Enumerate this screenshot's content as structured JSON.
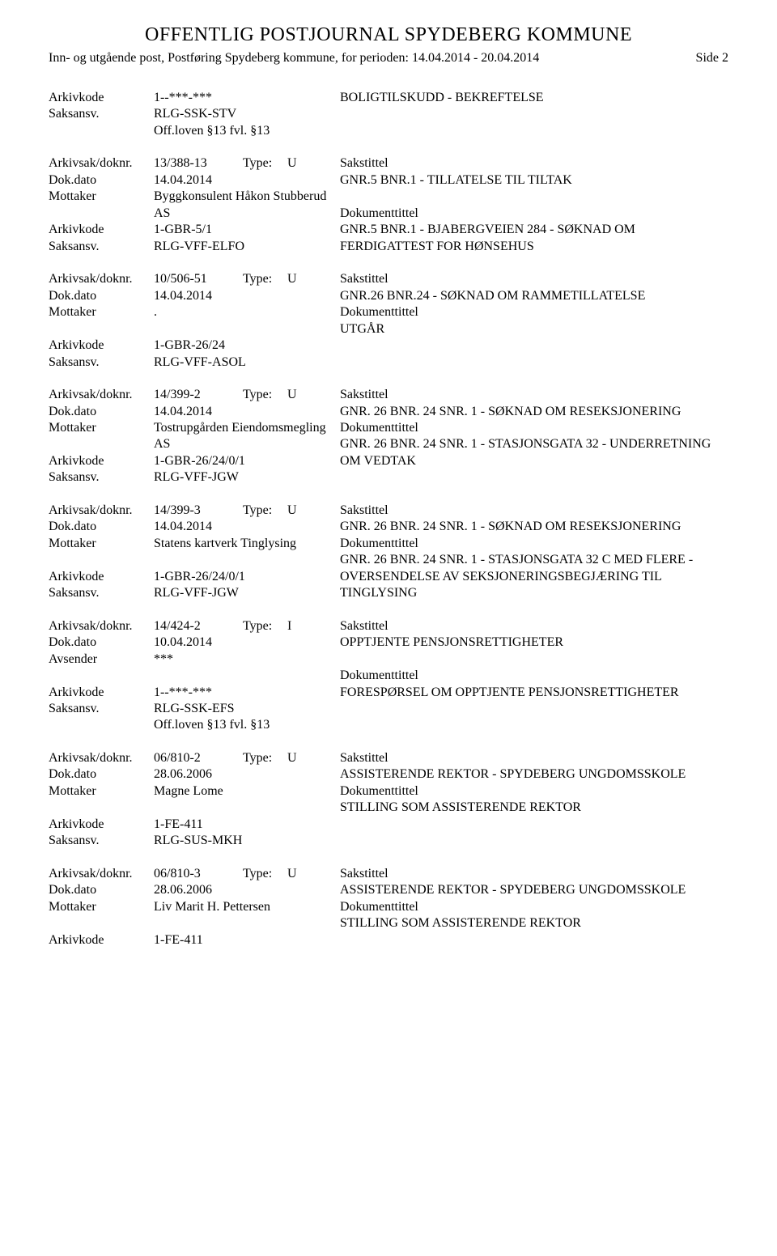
{
  "header": {
    "title": "OFFENTLIG POSTJOURNAL SPYDEBERG KOMMUNE",
    "subheader": "Inn- og utgående post, Postføring Spydeberg kommune, for perioden: 14.04.2014 - 20.04.2014",
    "side_label": "Side 2"
  },
  "labels": {
    "arkivkode": "Arkivkode",
    "saksansv": "Saksansv.",
    "arkivsak": "Arkivsak/doknr.",
    "dokdato": "Dok.dato",
    "mottaker": "Mottaker",
    "avsender": "Avsender",
    "type": "Type:",
    "sakstittel": "Sakstittel",
    "dokumenttittel": "Dokumenttittel"
  },
  "entries": [
    {
      "rows": [
        {
          "label_key": "arkivkode",
          "value": "1--***-***"
        },
        {
          "label_key": "saksansv",
          "value": "RLG-SSK-STV"
        },
        {
          "label_key": "",
          "value": "Off.loven §13 fvl. §13"
        }
      ],
      "right_title": "BOLIGTILSKUDD - BEKREFTELSE",
      "right_body": ""
    },
    {
      "rows": [
        {
          "label_key": "arkivsak",
          "value": "13/388-13",
          "type": "U"
        },
        {
          "label_key": "dokdato",
          "value": "14.04.2014"
        },
        {
          "label_key": "mottaker",
          "value": "Byggkonsulent Håkon Stubberud AS"
        },
        {
          "label_key": "arkivkode",
          "value": "1-GBR-5/1"
        },
        {
          "label_key": "saksansv",
          "value": "RLG-VFF-ELFO"
        }
      ],
      "right_title": "Sakstittel",
      "right_lines": [
        "GNR.5 BNR.1 - TILLATELSE TIL TILTAK",
        "",
        "Dokumenttittel",
        "GNR.5 BNR.1 -  BJABERGVEIEN 284 - SØKNAD OM FERDIGATTEST FOR HØNSEHUS"
      ]
    },
    {
      "rows": [
        {
          "label_key": "arkivsak",
          "value": "10/506-51",
          "type": "U"
        },
        {
          "label_key": "dokdato",
          "value": "14.04.2014"
        },
        {
          "label_key": "mottaker",
          "value": "."
        },
        {
          "label_key": "",
          "value": ""
        },
        {
          "label_key": "arkivkode",
          "value": "1-GBR-26/24"
        },
        {
          "label_key": "saksansv",
          "value": "RLG-VFF-ASOL"
        }
      ],
      "right_title": "Sakstittel",
      "right_lines": [
        "GNR.26 BNR.24 - SØKNAD OM RAMMETILLATELSE",
        "Dokumenttittel",
        "UTGÅR"
      ]
    },
    {
      "rows": [
        {
          "label_key": "arkivsak",
          "value": "14/399-2",
          "type": "U"
        },
        {
          "label_key": "dokdato",
          "value": "14.04.2014"
        },
        {
          "label_key": "mottaker",
          "value": "Tostrupgården Eiendomsmegling AS"
        },
        {
          "label_key": "arkivkode",
          "value": "1-GBR-26/24/0/1"
        },
        {
          "label_key": "saksansv",
          "value": "RLG-VFF-JGW"
        }
      ],
      "right_title": "Sakstittel",
      "right_lines": [
        "GNR. 26 BNR. 24  SNR. 1 - SØKNAD OM RESEKSJONERING",
        "Dokumenttittel",
        "GNR. 26 BNR. 24 SNR. 1 - STASJONSGATA 32 - UNDERRETNING OM VEDTAK"
      ]
    },
    {
      "rows": [
        {
          "label_key": "arkivsak",
          "value": "14/399-3",
          "type": "U"
        },
        {
          "label_key": "dokdato",
          "value": "14.04.2014"
        },
        {
          "label_key": "mottaker",
          "value": "Statens kartverk Tinglysing"
        },
        {
          "label_key": "",
          "value": ""
        },
        {
          "label_key": "arkivkode",
          "value": "1-GBR-26/24/0/1"
        },
        {
          "label_key": "saksansv",
          "value": "RLG-VFF-JGW"
        }
      ],
      "right_title": "Sakstittel",
      "right_lines": [
        "GNR. 26 BNR. 24  SNR. 1 - SØKNAD OM RESEKSJONERING",
        "Dokumenttittel",
        "GNR. 26 BNR. 24  SNR. 1 - STASJONSGATA 32 C MED FLERE - OVERSENDELSE AV SEKSJONERINGSBEGJÆRING TIL TINGLYSING"
      ]
    },
    {
      "rows": [
        {
          "label_key": "arkivsak",
          "value": "14/424-2",
          "type": "I"
        },
        {
          "label_key": "dokdato",
          "value": "10.04.2014"
        },
        {
          "label_key": "avsender",
          "value": "***"
        },
        {
          "label_key": "",
          "value": ""
        },
        {
          "label_key": "arkivkode",
          "value": "1--***-***"
        },
        {
          "label_key": "saksansv",
          "value": "RLG-SSK-EFS"
        },
        {
          "label_key": "",
          "value": "Off.loven §13 fvl. §13"
        }
      ],
      "right_title": "Sakstittel",
      "right_lines": [
        "OPPTJENTE PENSJONSRETTIGHETER",
        "",
        "Dokumenttittel",
        "FORESPØRSEL OM OPPTJENTE PENSJONSRETTIGHETER"
      ]
    },
    {
      "rows": [
        {
          "label_key": "arkivsak",
          "value": "06/810-2",
          "type": "U"
        },
        {
          "label_key": "dokdato",
          "value": "28.06.2006"
        },
        {
          "label_key": "mottaker",
          "value": "Magne Lome"
        },
        {
          "label_key": "",
          "value": ""
        },
        {
          "label_key": "arkivkode",
          "value": "1-FE-411"
        },
        {
          "label_key": "saksansv",
          "value": "RLG-SUS-MKH"
        }
      ],
      "right_title": "Sakstittel",
      "right_lines": [
        "ASSISTERENDE REKTOR - SPYDEBERG UNGDOMSSKOLE",
        "Dokumenttittel",
        "STILLING SOM ASSISTERENDE REKTOR"
      ]
    },
    {
      "rows": [
        {
          "label_key": "arkivsak",
          "value": "06/810-3",
          "type": "U"
        },
        {
          "label_key": "dokdato",
          "value": "28.06.2006"
        },
        {
          "label_key": "mottaker",
          "value": "Liv Marit H. Pettersen"
        },
        {
          "label_key": "",
          "value": ""
        },
        {
          "label_key": "arkivkode",
          "value": "1-FE-411"
        }
      ],
      "right_title": "Sakstittel",
      "right_lines": [
        "ASSISTERENDE REKTOR - SPYDEBERG UNGDOMSSKOLE",
        "Dokumenttittel",
        "STILLING SOM ASSISTERENDE REKTOR"
      ]
    }
  ]
}
